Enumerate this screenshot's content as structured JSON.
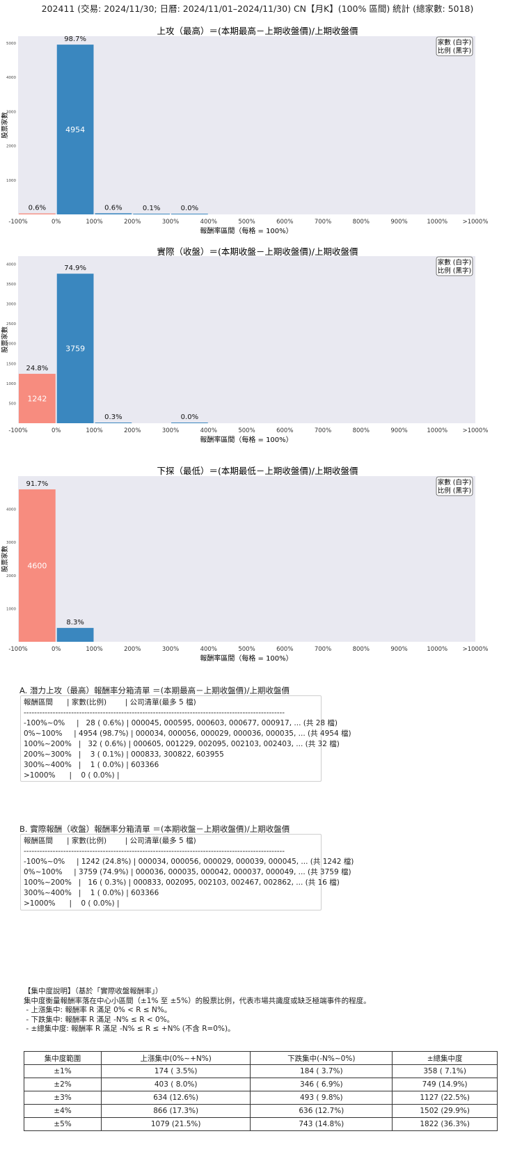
{
  "page_title": "202411 (交易: 2024/11/30; 日曆: 2024/11/01–2024/11/30) CN【月K】(100% 區間) 統計 (總家數: 5018)",
  "legend": {
    "line1": "家數 (白字)",
    "line2": "比例 (黑字)"
  },
  "colors": {
    "negative": "#f78c7f",
    "positive": "#3a87bf",
    "plot_bg": "#e9e9f1"
  },
  "chart_data": [
    {
      "type": "bar",
      "title": "上攻（最高）＝(本期最高－上期收盤價)/上期收盤價",
      "xlabel": "報酬率區間（每格 = 100%）",
      "ylabel": "股票家數",
      "xticks": [
        "-100%",
        "0%",
        "100%",
        "200%",
        "300%",
        "400%",
        "500%",
        "600%",
        "700%",
        "800%",
        "900%",
        "1000%",
        ">1000%"
      ],
      "yticks": [
        1000,
        2000,
        3000,
        4000,
        5000
      ],
      "ylim": [
        0,
        5200
      ],
      "bars": [
        {
          "range": "-100%~0%",
          "count": 28,
          "pct": "0.6%",
          "sign": "negative"
        },
        {
          "range": "0%~100%",
          "count": 4954,
          "pct": "98.7%",
          "sign": "positive"
        },
        {
          "range": "100%~200%",
          "count": 32,
          "pct": "0.6%",
          "sign": "positive"
        },
        {
          "range": "200%~300%",
          "count": 3,
          "pct": "0.1%",
          "sign": "positive"
        },
        {
          "range": "300%~400%",
          "count": 1,
          "pct": "0.0%",
          "sign": "positive"
        }
      ]
    },
    {
      "type": "bar",
      "title": "實際（收盤）＝(本期收盤－上期收盤價)/上期收盤價",
      "xlabel": "報酬率區間（每格 = 100%）",
      "ylabel": "股票家數",
      "xticks": [
        "-100%",
        "0%",
        "100%",
        "200%",
        "300%",
        "400%",
        "500%",
        "600%",
        "700%",
        "800%",
        "900%",
        "1000%",
        ">1000%"
      ],
      "yticks": [
        500,
        1000,
        1500,
        2000,
        2500,
        3000,
        3500,
        4000
      ],
      "ylim": [
        0,
        4200
      ],
      "bars": [
        {
          "range": "-100%~0%",
          "count": 1242,
          "pct": "24.8%",
          "sign": "negative"
        },
        {
          "range": "0%~100%",
          "count": 3759,
          "pct": "74.9%",
          "sign": "positive"
        },
        {
          "range": "100%~200%",
          "count": 16,
          "pct": "0.3%",
          "sign": "positive"
        },
        {
          "range": "300%~400%",
          "count": 1,
          "pct": "0.0%",
          "sign": "positive"
        }
      ]
    },
    {
      "type": "bar",
      "title": "下探（最低）＝(本期最低－上期收盤價)/上期收盤價",
      "xlabel": "報酬率區間（每格 = 100%）",
      "ylabel": "股票家數",
      "xticks": [
        "-100%",
        "0%",
        "100%",
        "200%",
        "300%",
        "400%",
        "500%",
        "600%",
        "700%",
        "800%",
        "900%",
        "1000%",
        ">1000%"
      ],
      "yticks": [
        1000,
        2000,
        3000,
        4000
      ],
      "ylim": [
        0,
        5000
      ],
      "bars": [
        {
          "range": "-100%~0%",
          "count": 4600,
          "pct": "91.7%",
          "sign": "negative"
        },
        {
          "range": "0%~100%",
          "count": 418,
          "pct": "8.3%",
          "sign": "positive"
        }
      ]
    }
  ],
  "list_a": {
    "title": "A. 潛力上攻（最高）報酬率分箱清單 ＝(本期最高－上期收盤價)/上期收盤價",
    "lines": [
      "報酬區間      | 家數(比例)        | 公司清單(最多 5 檔)",
      "---------------------------------------------------------------------------------------------------",
      "-100%~0%     |   28 ( 0.6%) | 000045, 000595, 000603, 000677, 000917, ... (共 28 檔)",
      "0%~100%     | 4954 (98.7%) | 000034, 000056, 000029, 000036, 000035, ... (共 4954 檔)",
      "100%~200%   |   32 ( 0.6%) | 000605, 001229, 002095, 002103, 002403, ... (共 32 檔)",
      "200%~300%   |    3 ( 0.1%) | 000833, 300822, 603955",
      "300%~400%   |    1 ( 0.0%) | 603366",
      ">1000%      |    0 ( 0.0%) |"
    ]
  },
  "list_b": {
    "title": "B. 實際報酬（收盤）報酬率分箱清單 ＝(本期收盤－上期收盤價)/上期收盤價",
    "lines": [
      "報酬區間      | 家數(比例)        | 公司清單(最多 5 檔)",
      "---------------------------------------------------------------------------------------------------",
      "-100%~0%     | 1242 (24.8%) | 000034, 000056, 000029, 000039, 000045, ... (共 1242 檔)",
      "0%~100%     | 3759 (74.9%) | 000036, 000035, 000042, 000037, 000049, ... (共 3759 檔)",
      "100%~200%   |   16 ( 0.3%) | 000833, 002095, 002103, 002467, 002862, ... (共 16 檔)",
      "300%~400%   |    1 ( 0.0%) | 603366",
      ">1000%      |    0 ( 0.0%) |"
    ]
  },
  "notes": {
    "lines": [
      "【集中度說明】（基於「實際收盤報酬率」）",
      "集中度衡量報酬率落在中心小區間（±1% 至 ±5%）的股票比例，代表市場共識度或缺乏極端事件的程度。",
      " - 上漲集中: 報酬率 R 滿足 0% < R ≤ N%。",
      " - 下跌集中: 報酬率 R 滿足 -N% ≤ R < 0%。",
      " - ±總集中度: 報酬率 R 滿足 -N% ≤ R ≤ +N% (不含 R=0%)。"
    ]
  },
  "concentration_table": {
    "headers": [
      "集中度範圍",
      "上漲集中(0%~+N%)",
      "下跌集中(-N%~0%)",
      "±總集中度"
    ],
    "rows": [
      [
        "±1%",
        "174 ( 3.5%)",
        "184 ( 3.7%)",
        "358 ( 7.1%)"
      ],
      [
        "±2%",
        "403 ( 8.0%)",
        "346 ( 6.9%)",
        "749 (14.9%)"
      ],
      [
        "±3%",
        "634 (12.6%)",
        "493 ( 9.8%)",
        "1127 (22.5%)"
      ],
      [
        "±4%",
        "866 (17.3%)",
        "636 (12.7%)",
        "1502 (29.9%)"
      ],
      [
        "±5%",
        "1079 (21.5%)",
        "743 (14.8%)",
        "1822 (36.3%)"
      ]
    ]
  }
}
